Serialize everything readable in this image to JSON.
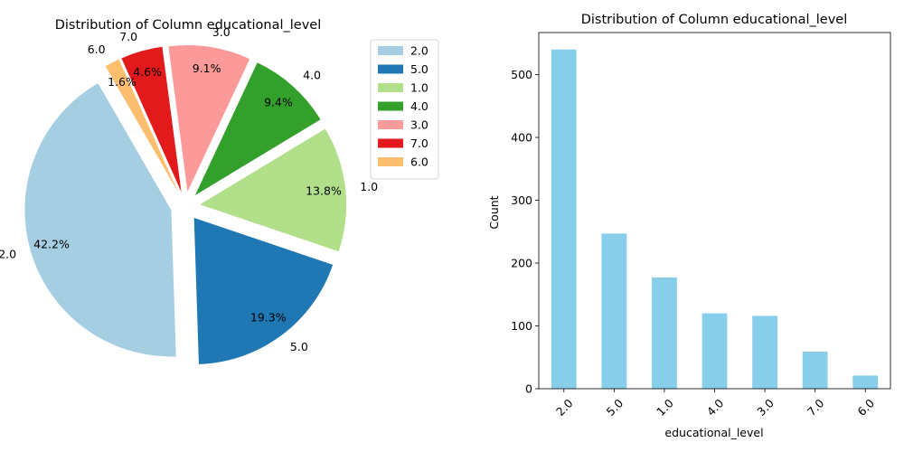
{
  "chart_data": [
    {
      "type": "pie",
      "title": "Distribution of Column educational_level",
      "labels": [
        "2.0",
        "5.0",
        "1.0",
        "4.0",
        "3.0",
        "7.0",
        "6.0"
      ],
      "values": [
        540,
        247,
        177,
        120,
        116,
        59,
        21
      ],
      "percent_labels": [
        "42.2%",
        "19.3%",
        "13.8%",
        "9.4%",
        "9.1%",
        "4.6%",
        "1.6%"
      ],
      "colors": [
        "#a6cee3",
        "#1f78b4",
        "#b2df8a",
        "#33a02c",
        "#fb9a99",
        "#e31a1c",
        "#fdbf6f"
      ],
      "start_angle": 120,
      "exploded": true,
      "legend": {
        "position": "right",
        "entries": [
          "2.0",
          "5.0",
          "1.0",
          "4.0",
          "3.0",
          "7.0",
          "6.0"
        ]
      }
    },
    {
      "type": "bar",
      "title": "Distribution of Column educational_level",
      "categories": [
        "2.0",
        "5.0",
        "1.0",
        "4.0",
        "3.0",
        "7.0",
        "6.0"
      ],
      "values": [
        540,
        247,
        177,
        120,
        116,
        59,
        21
      ],
      "xlabel": "educational_level",
      "ylabel": "Count",
      "ylim": [
        0,
        567
      ],
      "yticks": [
        0,
        100,
        200,
        300,
        400,
        500
      ],
      "color": "#87ceeb",
      "grid": false
    }
  ]
}
